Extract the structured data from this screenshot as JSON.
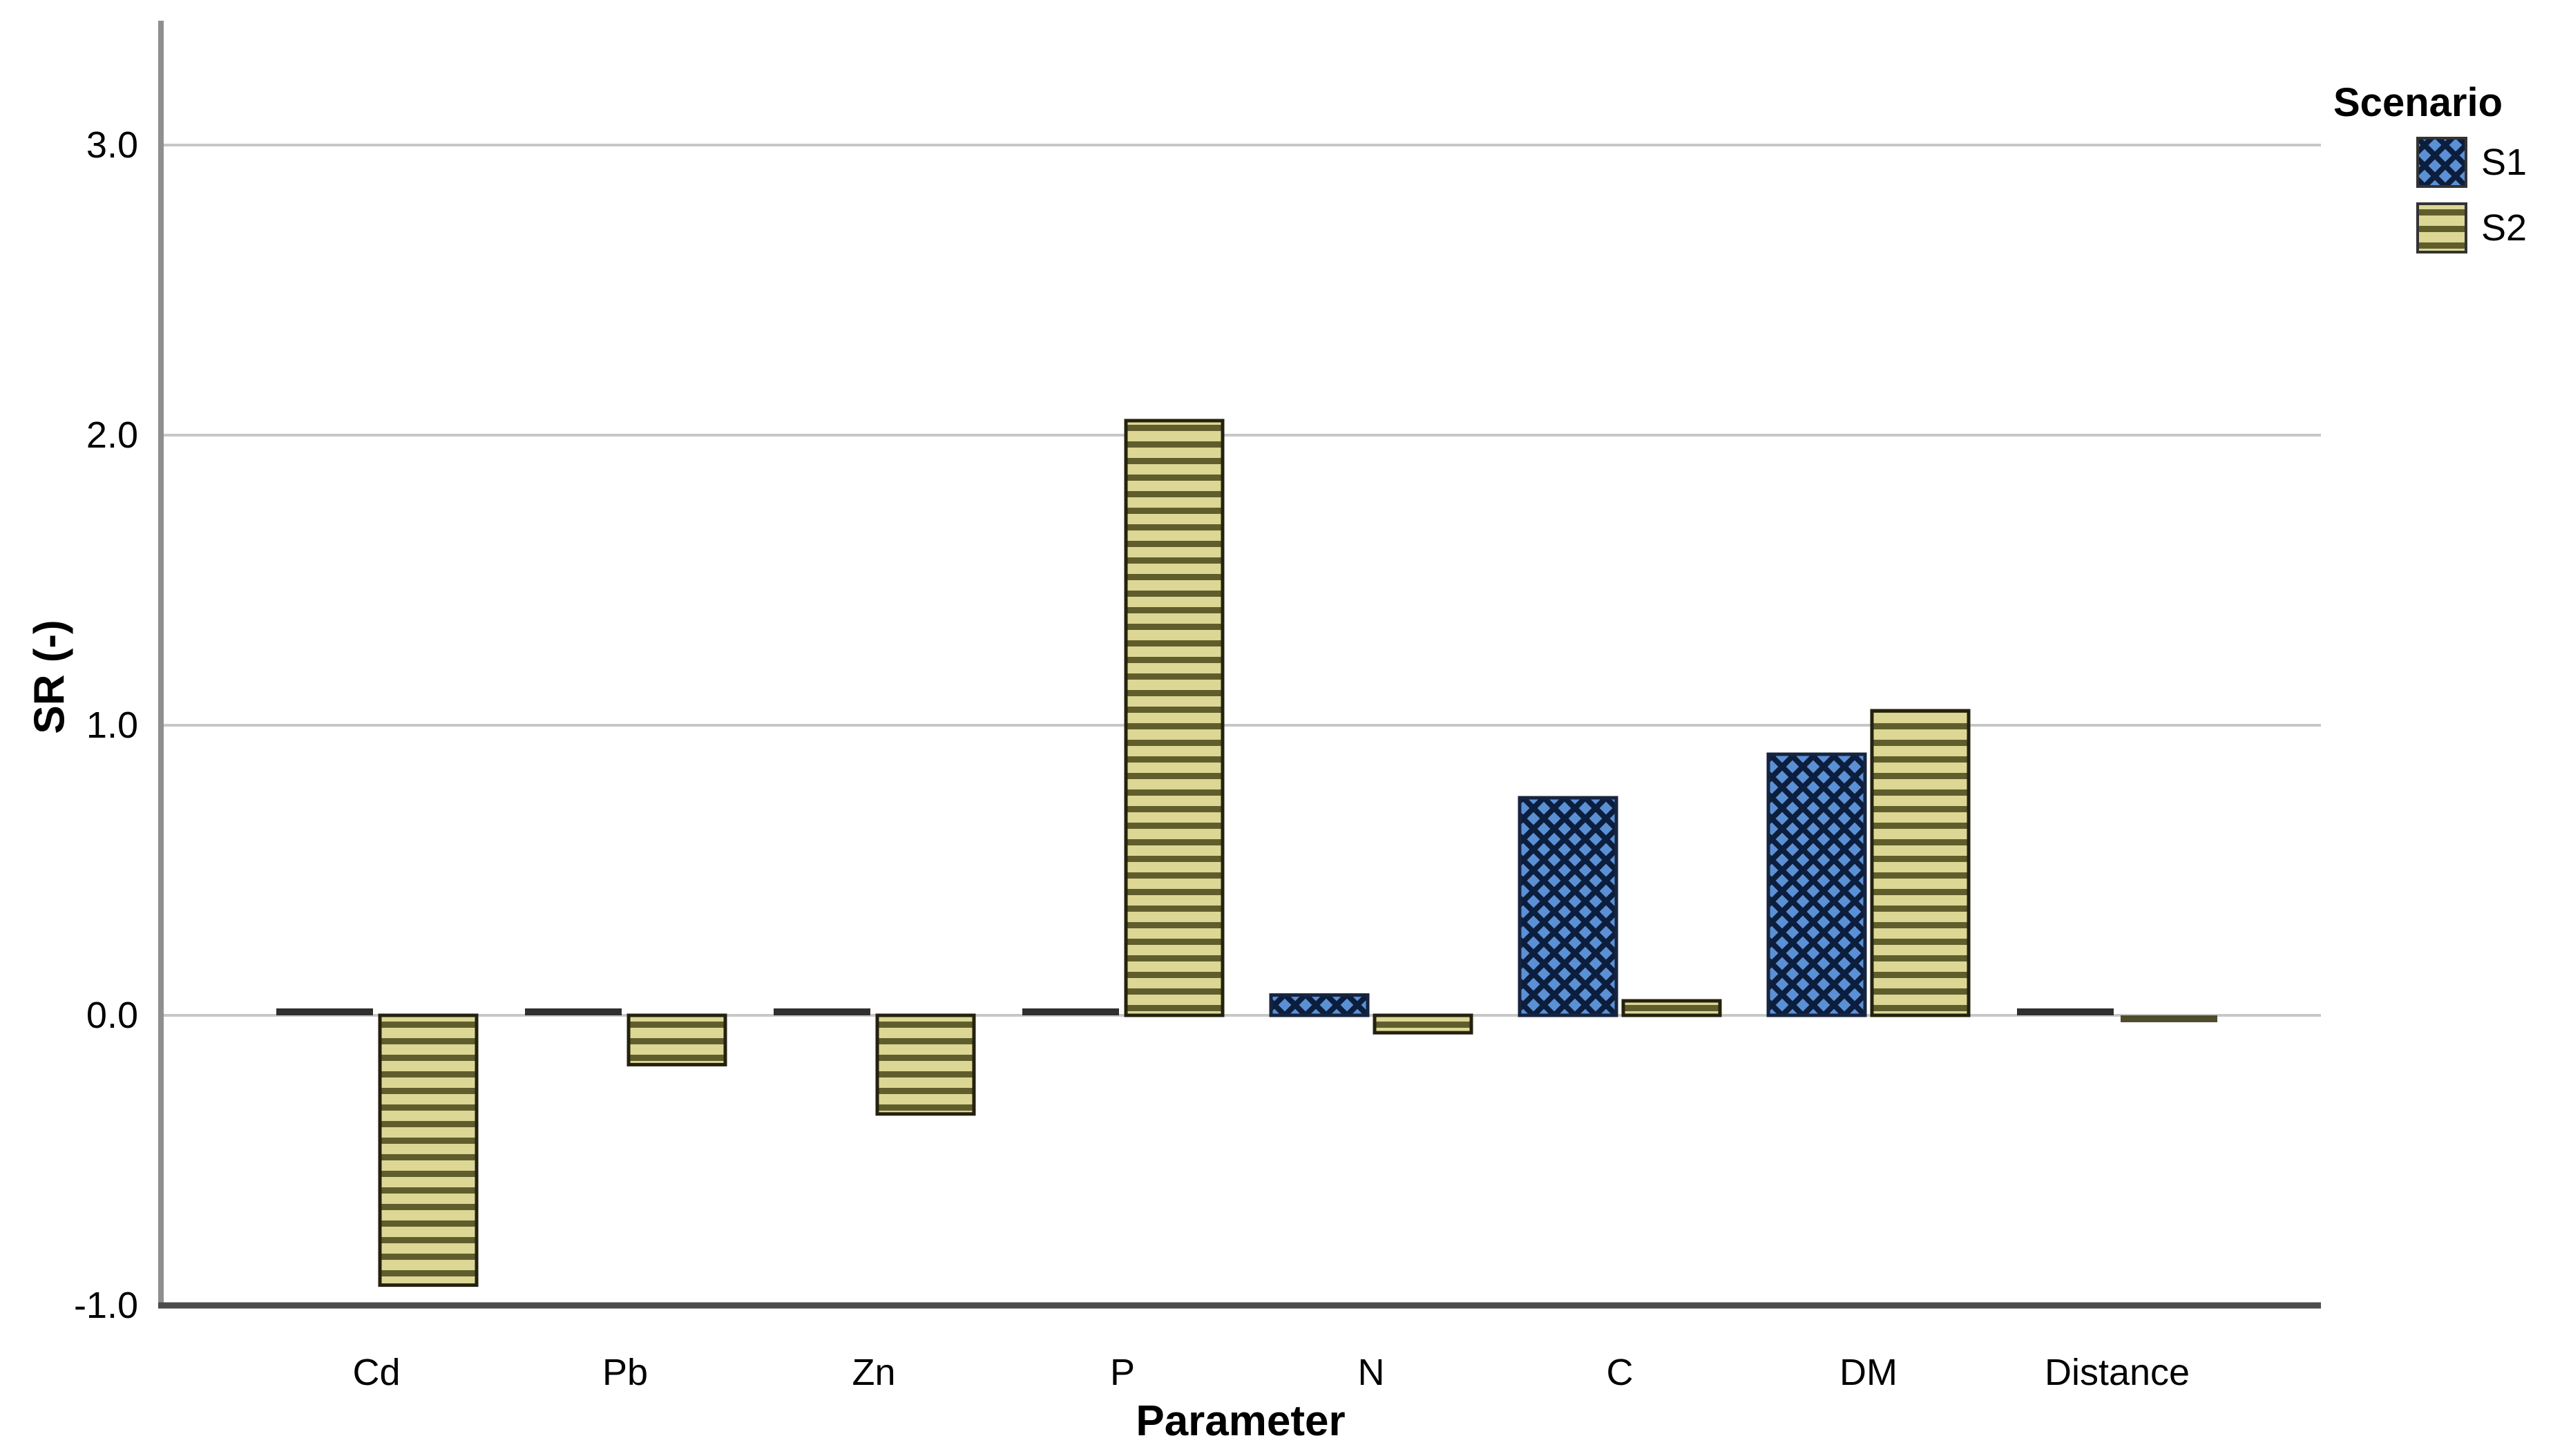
{
  "chart_data": {
    "type": "bar",
    "title": "",
    "xlabel": "Parameter",
    "ylabel": "SR (-)",
    "categories": [
      "Cd",
      "Pb",
      "Zn",
      "P",
      "N",
      "C",
      "DM",
      "Distance"
    ],
    "series": [
      {
        "name": "S1",
        "values": [
          0.0,
          0.0,
          0.0,
          0.0,
          0.07,
          0.75,
          0.9,
          0.01
        ],
        "pattern": "crosshatch",
        "fill": "#5b90d5",
        "pattern_line": "#0c1e3d",
        "outline": "#16243f",
        "zero_bar_color": "#2f2f2f"
      },
      {
        "name": "S2",
        "values": [
          -0.93,
          -0.17,
          -0.34,
          2.05,
          -0.06,
          0.05,
          1.05,
          -0.02
        ],
        "pattern": "hstripe",
        "fill": "#dcd794",
        "pattern_line": "#605d2d",
        "outline": "#24220f",
        "zero_bar_color": "#4f4d2c"
      }
    ],
    "y_ticks": [
      {
        "value": 3.0,
        "label": "3.0"
      },
      {
        "value": 2.0,
        "label": "2.0"
      },
      {
        "value": 1.0,
        "label": "1.0"
      },
      {
        "value": 0.0,
        "label": "0.0"
      },
      {
        "value": -1.0,
        "label": "-1.0"
      }
    ],
    "ylim": [
      -1.0,
      3.43
    ],
    "grid": true,
    "legend_title": "Scenario",
    "legend_position": "top-right",
    "colors": {
      "gridline": "#c7c7c7",
      "y_axis_line": "#8f8f8f",
      "x_axis_line": "#4c4c4c",
      "text": "#000000",
      "background": "#ffffff"
    }
  }
}
